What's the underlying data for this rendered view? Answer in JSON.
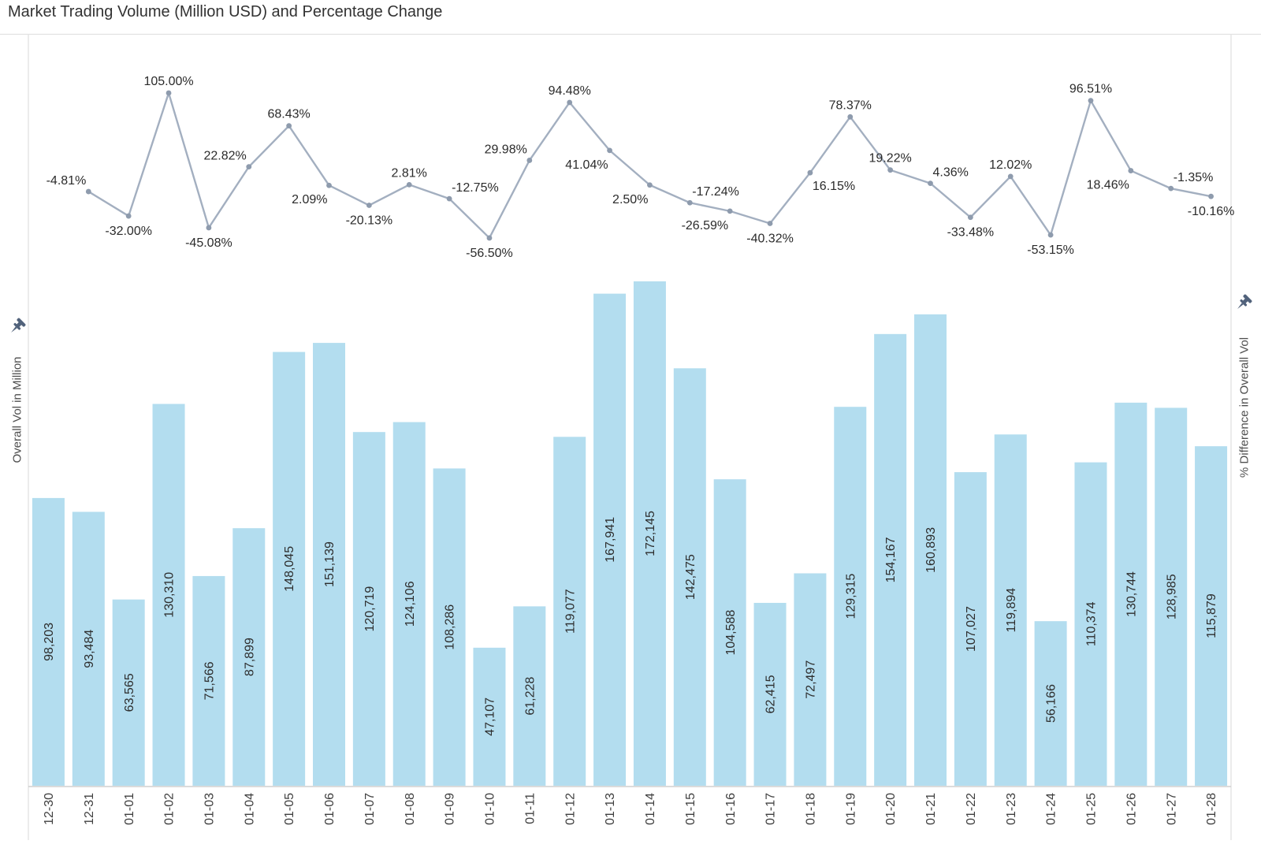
{
  "title": "Market Trading Volume (Million USD) and Percentage Change",
  "axes": {
    "left": {
      "title": "Overall Vol in Million"
    },
    "right": {
      "title": "% Difference in Overall Vol"
    }
  },
  "icons": {
    "left_pin": "pushpin-icon",
    "right_pin": "pushpin-icon"
  },
  "colors": {
    "bar": "#B3DDEF",
    "line": "#A3AFC0",
    "marker": "#8E9BAD",
    "pin": "#51627B",
    "border": "#E2E2E2",
    "axis_line": "#CFCFCF"
  },
  "chart_data": {
    "type": "combo",
    "categories": [
      "12-30",
      "12-31",
      "01-01",
      "01-02",
      "01-03",
      "01-04",
      "01-05",
      "01-06",
      "01-07",
      "01-08",
      "01-09",
      "01-10",
      "01-11",
      "01-12",
      "01-13",
      "01-14",
      "01-15",
      "01-16",
      "01-17",
      "01-18",
      "01-19",
      "01-20",
      "01-21",
      "01-22",
      "01-23",
      "01-24",
      "01-25",
      "01-26",
      "01-27",
      "01-28"
    ],
    "series": [
      {
        "name": "Overall Vol in Million",
        "type": "bar",
        "color": "#B3DDEF",
        "values": [
          98203,
          93484,
          63565,
          130310,
          71566,
          87899,
          148045,
          151139,
          120719,
          124106,
          108286,
          47107,
          61228,
          119077,
          167941,
          172145,
          142475,
          104588,
          62415,
          72497,
          129315,
          154167,
          160893,
          107027,
          119894,
          56166,
          110374,
          130744,
          128985,
          115879
        ],
        "labels": [
          "98,203",
          "93,484",
          "63,565",
          "130,310",
          "71,566",
          "87,899",
          "148,045",
          "151,139",
          "120,719",
          "124,106",
          "108,286",
          "47,107",
          "61,228",
          "119,077",
          "167,941",
          "172,145",
          "142,475",
          "104,588",
          "62,415",
          "72,497",
          "129,315",
          "154,167",
          "160,893",
          "107,027",
          "119,894",
          "56,166",
          "110,374",
          "130,744",
          "128,985",
          "115,879"
        ]
      },
      {
        "name": "% Difference in Overall Vol",
        "type": "line",
        "color": "#A3AFC0",
        "marker_color": "#8E9BAD",
        "starts_at_category_index": 1,
        "values": [
          -4.81,
          -32.0,
          105.0,
          -45.08,
          22.82,
          68.43,
          2.09,
          -20.13,
          2.81,
          -12.75,
          -56.5,
          29.98,
          94.48,
          41.04,
          2.5,
          -17.24,
          -26.59,
          -40.32,
          16.15,
          78.37,
          19.22,
          4.36,
          -33.48,
          12.02,
          -53.15,
          96.51,
          18.46,
          -1.35,
          -10.16
        ],
        "labels": [
          "-4.81%",
          "-32.00%",
          "105.00%",
          "-45.08%",
          "22.82%",
          "68.43%",
          "2.09%",
          "-20.13%",
          "2.81%",
          "-12.75%",
          "-56.50%",
          "29.98%",
          "94.48%",
          "41.04%",
          "2.50%",
          "-17.24%",
          "-26.59%",
          "-40.32%",
          "16.15%",
          "78.37%",
          "19.22%",
          "4.36%",
          "-33.48%",
          "12.02%",
          "-53.15%",
          "96.51%",
          "18.46%",
          "-1.35%",
          "-10.16%"
        ],
        "label_positions": [
          "above-left",
          "below",
          "above",
          "below",
          "above-left",
          "above",
          "below-left",
          "below",
          "above",
          "above-right",
          "below",
          "above-left",
          "above",
          "below-left",
          "below-left",
          "above-right",
          "below-left",
          "below",
          "below-right",
          "above",
          "above",
          "above-right",
          "below",
          "above",
          "below",
          "above",
          "below-left",
          "above-right",
          "below"
        ]
      }
    ],
    "layout": {
      "grid": false,
      "legend": false,
      "bar_label_rotation": -90,
      "x_tick_rotation": -90,
      "bar_ylim": [
        0,
        180000
      ],
      "line_ylim": [
        -60,
        110
      ]
    }
  }
}
